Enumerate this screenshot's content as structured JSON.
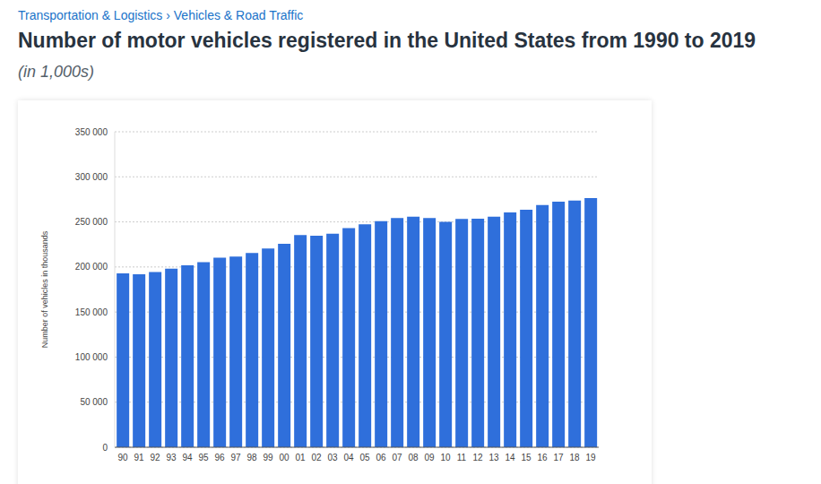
{
  "chart_data": {
    "type": "bar",
    "title": "Number of motor vehicles registered in the United States from 1990 to 2019",
    "subtitle": "(in 1,000s)",
    "annotations": [
      "Transportation & Logistics › Vehicles & Road Traffic"
    ],
    "y_label": "Number of vehicles in thousands",
    "categories": [
      "90",
      "91",
      "92",
      "93",
      "94",
      "95",
      "96",
      "97",
      "98",
      "99",
      "00",
      "01",
      "02",
      "03",
      "04",
      "05",
      "06",
      "07",
      "08",
      "09",
      "10",
      "11",
      "12",
      "13",
      "14",
      "15",
      "16",
      "17",
      "18",
      "19"
    ],
    "values": [
      193000,
      192000,
      194400,
      198000,
      201800,
      205400,
      210400,
      211600,
      215500,
      220500,
      225800,
      235300,
      234600,
      236800,
      243000,
      247400,
      250800,
      254400,
      255900,
      254200,
      250000,
      253200,
      253600,
      255900,
      260400,
      263600,
      268800,
      272500,
      273600,
      276500
    ],
    "color": "#2f6fdb",
    "ylim": [
      0,
      350000
    ],
    "yticks": [
      0,
      {
        "value": 50000,
        "label": "50 000"
      },
      {
        "value": 100000,
        "label": "100 000"
      },
      {
        "value": 150000,
        "label": "150 000"
      },
      {
        "value": 200000,
        "label": "200 000"
      },
      {
        "value": 250000,
        "label": "250 000"
      },
      {
        "value": 300000,
        "label": "300 000"
      },
      {
        "value": 350000,
        "label": "350 000"
      }
    ],
    "grid": true
  }
}
